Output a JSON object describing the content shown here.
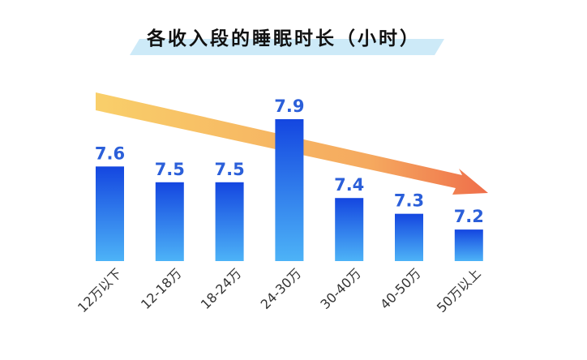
{
  "chart_data": {
    "type": "bar",
    "title": "各收入段的睡眠时长（小时）",
    "categories": [
      "12万以下",
      "12-18万",
      "18-24万",
      "24-30万",
      "30-40万",
      "40-50万",
      "50万以上"
    ],
    "values": [
      7.6,
      7.5,
      7.5,
      7.9,
      7.4,
      7.3,
      7.2
    ],
    "value_labels": [
      "7.6",
      "7.5",
      "7.5",
      "7.9",
      "7.4",
      "7.3",
      "7.2"
    ],
    "xlabel": "",
    "ylabel": "",
    "ylim": [
      7.0,
      7.9
    ],
    "grid": false,
    "annotations": [
      {
        "type": "trend-arrow",
        "direction": "decreasing"
      }
    ],
    "colors": {
      "bar_top": "#1446e0",
      "bar_bottom": "#4db3f7",
      "value_label": "#2b5fd9",
      "arrow_start": "#f9cf6a",
      "arrow_end": "#ef6e4a",
      "title_band": "#cdeaf8"
    }
  }
}
